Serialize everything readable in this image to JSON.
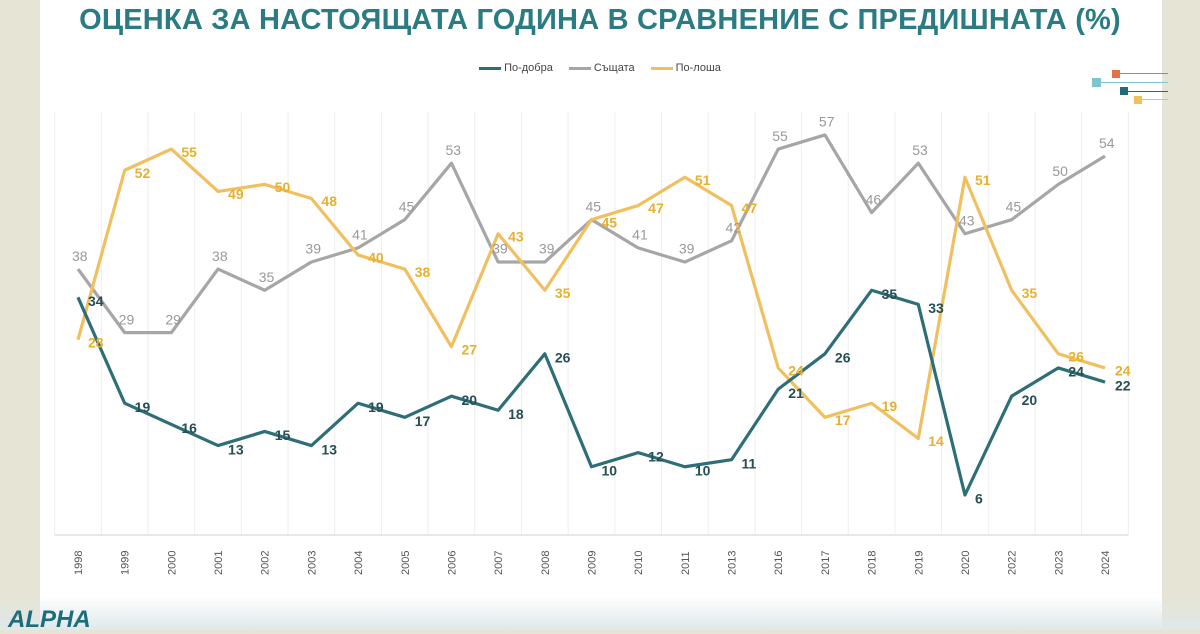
{
  "chart_data": {
    "type": "line",
    "title": "ОЦЕНКА ЗА НАСТОЯЩАТА ГОДИНА В СРАВНЕНИЕ С ПРЕДИШНАТА (%)",
    "categories": [
      "1998",
      "1999",
      "2000",
      "2001",
      "2002",
      "2003",
      "2004",
      "2005",
      "2006",
      "2007",
      "2008",
      "2009",
      "2010",
      "2011",
      "2013",
      "2016",
      "2017",
      "2018",
      "2019",
      "2020",
      "2022",
      "2023",
      "2024"
    ],
    "series": [
      {
        "name": "По-добра",
        "color": "#2e6e76",
        "values": [
          34,
          19,
          16,
          13,
          15,
          13,
          19,
          17,
          20,
          18,
          26,
          10,
          12,
          10,
          11,
          21,
          26,
          35,
          33,
          6,
          20,
          24,
          22
        ]
      },
      {
        "name": "Същата",
        "color": "#a6a6a6",
        "values": [
          38,
          29,
          29,
          38,
          35,
          39,
          41,
          45,
          53,
          39,
          39,
          45,
          41,
          39,
          42,
          55,
          57,
          46,
          53,
          43,
          45,
          50,
          54
        ]
      },
      {
        "name": "По-лоша",
        "color": "#f0c060",
        "values": [
          28,
          52,
          55,
          49,
          50,
          48,
          40,
          38,
          27,
          43,
          35,
          45,
          47,
          51,
          47,
          24,
          17,
          19,
          14,
          51,
          35,
          26,
          24
        ]
      }
    ],
    "legend": "top",
    "grid": "vertical",
    "data_labels": true
  },
  "logo": "ALPHA"
}
